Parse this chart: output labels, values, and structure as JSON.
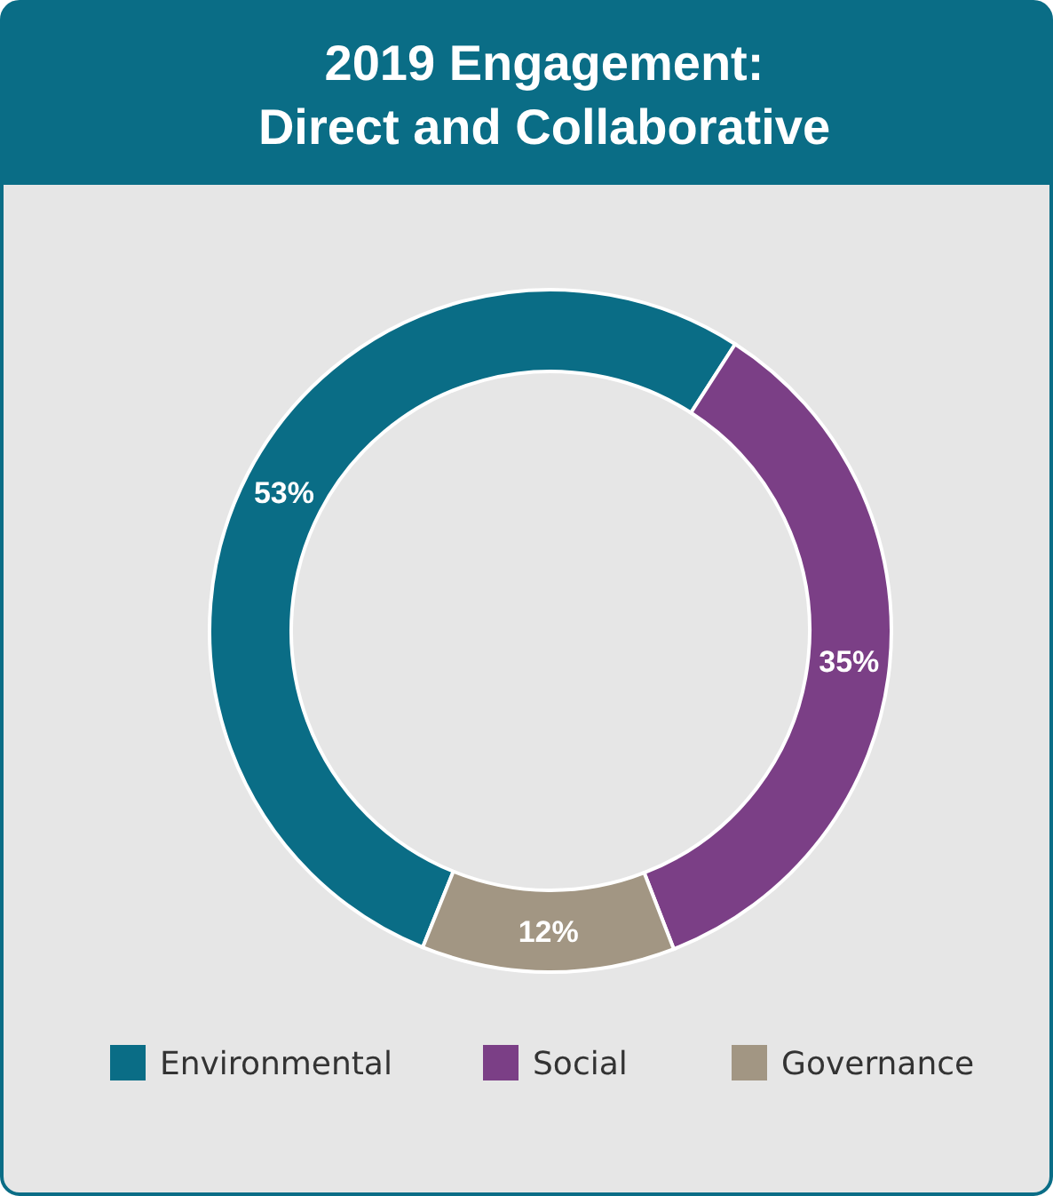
{
  "chart_data": {
    "type": "donut",
    "title": "2019 Engagement:\nDirect and Collaborative",
    "categories": [
      "Environmental",
      "Social",
      "Governance"
    ],
    "values": [
      53,
      35,
      12
    ],
    "colors": [
      "#0a6d86",
      "#7b3f86",
      "#a29683"
    ],
    "value_labels": [
      "53%",
      "35%",
      "12%"
    ],
    "legend": "bottom"
  }
}
